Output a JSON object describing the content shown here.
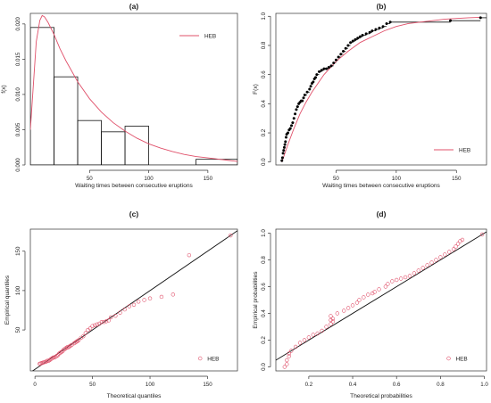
{
  "colors": {
    "series": "#e0506a",
    "axis": "#333333",
    "points": "#000000"
  },
  "chart_data": [
    {
      "id": "a",
      "type": "bar",
      "title": "(a)",
      "xlabel": "Waiting times between consecutive eruptions",
      "ylabel": "f(x)",
      "xlim": [
        0,
        175
      ],
      "ylim": [
        0,
        0.0215
      ],
      "xticks": [
        "50",
        "100",
        "150"
      ],
      "xtick_values": [
        50,
        100,
        150
      ],
      "yticks": [
        "0.000",
        "0.005",
        "0.010",
        "0.015",
        "0.020"
      ],
      "ytick_values": [
        0,
        0.005,
        0.01,
        0.015,
        0.02
      ],
      "bins": [
        {
          "x0": 0,
          "x1": 20,
          "value": 0.0195
        },
        {
          "x0": 20,
          "x1": 40,
          "value": 0.0125
        },
        {
          "x0": 40,
          "x1": 60,
          "value": 0.0063
        },
        {
          "x0": 60,
          "x1": 80,
          "value": 0.0047
        },
        {
          "x0": 80,
          "x1": 100,
          "value": 0.0055
        },
        {
          "x0": 100,
          "x1": 120,
          "value": 0
        },
        {
          "x0": 120,
          "x1": 140,
          "value": 0
        },
        {
          "x0": 140,
          "x1": 175,
          "value": 0.0008
        }
      ],
      "curve": {
        "name": "HEB",
        "x": [
          0,
          5,
          8,
          10,
          12,
          15,
          20,
          25,
          30,
          40,
          50,
          60,
          70,
          80,
          90,
          100,
          110,
          120,
          130,
          140,
          150,
          160,
          170,
          175
        ],
        "y": [
          0.005,
          0.0175,
          0.0205,
          0.0212,
          0.021,
          0.0202,
          0.0185,
          0.0165,
          0.0148,
          0.0118,
          0.0094,
          0.0075,
          0.006,
          0.0048,
          0.0038,
          0.003,
          0.0024,
          0.0019,
          0.0015,
          0.0012,
          0.001,
          0.0008,
          0.0006,
          0.0005
        ]
      },
      "legend": {
        "position": "top-right",
        "entries": [
          "HEB"
        ]
      }
    },
    {
      "id": "b",
      "type": "line",
      "title": "(b)",
      "xlabel": "Waiting times between consecutive eruptions",
      "ylabel": "F(x)",
      "xlim": [
        0,
        175
      ],
      "ylim": [
        -0.02,
        1.02
      ],
      "xticks": [
        "50",
        "100",
        "150"
      ],
      "xtick_values": [
        50,
        100,
        150
      ],
      "yticks": [
        "0.0",
        "0.2",
        "0.4",
        "0.6",
        "0.8",
        "1.0"
      ],
      "ytick_values": [
        0,
        0.2,
        0.4,
        0.6,
        0.8,
        1.0
      ],
      "empirical": {
        "x": [
          5,
          5.5,
          6,
          6.5,
          7,
          7.5,
          8,
          8.5,
          9,
          10,
          11,
          12,
          13,
          14,
          15,
          16,
          17,
          18,
          19,
          20,
          21,
          22,
          23,
          24,
          26,
          28,
          29,
          30,
          31,
          32,
          33,
          34,
          36,
          38,
          40,
          42,
          44,
          46,
          48,
          50,
          52,
          54,
          56,
          58,
          60,
          62,
          64,
          66,
          68,
          70,
          72,
          75,
          78,
          80,
          83,
          86,
          89,
          92,
          95,
          145,
          170
        ],
        "y": [
          0.01,
          0.03,
          0.06,
          0.08,
          0.1,
          0.12,
          0.14,
          0.17,
          0.19,
          0.2,
          0.22,
          0.23,
          0.25,
          0.27,
          0.3,
          0.33,
          0.36,
          0.38,
          0.4,
          0.41,
          0.42,
          0.42,
          0.44,
          0.46,
          0.48,
          0.5,
          0.52,
          0.54,
          0.55,
          0.57,
          0.58,
          0.6,
          0.62,
          0.63,
          0.64,
          0.64,
          0.65,
          0.66,
          0.68,
          0.7,
          0.72,
          0.74,
          0.76,
          0.78,
          0.8,
          0.82,
          0.83,
          0.84,
          0.85,
          0.86,
          0.87,
          0.88,
          0.89,
          0.9,
          0.91,
          0.92,
          0.93,
          0.95,
          0.96,
          0.97,
          0.99
        ]
      },
      "curve": {
        "name": "HEB",
        "x": [
          5,
          10,
          15,
          20,
          25,
          30,
          40,
          50,
          60,
          70,
          80,
          90,
          100,
          110,
          120,
          130,
          140,
          150,
          160,
          170
        ],
        "y": [
          0.0,
          0.12,
          0.23,
          0.33,
          0.41,
          0.48,
          0.6,
          0.69,
          0.76,
          0.82,
          0.86,
          0.9,
          0.93,
          0.95,
          0.96,
          0.97,
          0.98,
          0.985,
          0.99,
          0.993
        ]
      },
      "legend": {
        "position": "bottom-right",
        "entries": [
          "HEB"
        ]
      }
    },
    {
      "id": "c",
      "type": "scatter",
      "title": "(c)",
      "xlabel": "Theoretical quantiles",
      "ylabel": "Empirical quantiles",
      "xlim": [
        -4,
        176
      ],
      "ylim": [
        -2,
        178
      ],
      "xticks": [
        "0",
        "50",
        "100",
        "150"
      ],
      "xtick_values": [
        0,
        50,
        100,
        150
      ],
      "yticks": [
        "50",
        "100",
        "150"
      ],
      "ytick_values": [
        50,
        100,
        150
      ],
      "reference_line": [
        [
          -4,
          -4
        ],
        [
          176,
          176
        ]
      ],
      "points": {
        "name": "HEB",
        "x": [
          4,
          5,
          6,
          7,
          8,
          9,
          10,
          11,
          12,
          13,
          14,
          15,
          16,
          17,
          18,
          19,
          20,
          21,
          22,
          23,
          24,
          25,
          26,
          27,
          28,
          29,
          30,
          31,
          32,
          34,
          35,
          36,
          37,
          38,
          40,
          42,
          44,
          46,
          48,
          50,
          52,
          54,
          56,
          58,
          60,
          62,
          64,
          66,
          70,
          74,
          78,
          82,
          86,
          90,
          95,
          100,
          110,
          120,
          134,
          170
        ],
        "y": [
          7,
          7.5,
          8,
          8.5,
          9,
          9.5,
          10,
          11,
          11,
          12,
          13,
          14,
          15,
          15,
          16,
          17,
          18,
          20,
          21,
          22,
          23,
          25,
          26,
          27,
          28,
          28,
          29,
          30,
          31,
          33,
          34,
          35,
          36,
          37,
          40,
          42,
          46,
          50,
          52,
          55,
          56,
          57,
          58,
          60,
          60,
          61,
          62,
          66,
          68,
          72,
          76,
          80,
          82,
          86,
          88,
          90,
          92,
          95,
          145,
          170
        ]
      },
      "legend": {
        "position": "bottom-right",
        "entries": [
          "HEB"
        ]
      }
    },
    {
      "id": "d",
      "type": "scatter",
      "title": "(d)",
      "xlabel": "Theoretical probabilities",
      "ylabel": "Empirical probabilities",
      "xlim": [
        0.05,
        1.01
      ],
      "ylim": [
        -0.03,
        1.03
      ],
      "xticks": [
        "0.2",
        "0.4",
        "0.6",
        "0.8",
        "1.0"
      ],
      "xtick_values": [
        0.2,
        0.4,
        0.6,
        0.8,
        1.0
      ],
      "yticks": [
        "0.0",
        "0.2",
        "0.4",
        "0.6",
        "0.8",
        "1.0"
      ],
      "ytick_values": [
        0,
        0.2,
        0.4,
        0.6,
        0.8,
        1.0
      ],
      "reference_line": [
        [
          0.05,
          0.05
        ],
        [
          1.01,
          1.01
        ]
      ],
      "points": {
        "name": "HEB",
        "x": [
          0.09,
          0.1,
          0.1,
          0.11,
          0.11,
          0.12,
          0.14,
          0.16,
          0.18,
          0.2,
          0.22,
          0.24,
          0.26,
          0.28,
          0.3,
          0.3,
          0.3,
          0.31,
          0.31,
          0.33,
          0.36,
          0.38,
          0.4,
          0.42,
          0.43,
          0.45,
          0.47,
          0.49,
          0.5,
          0.52,
          0.55,
          0.56,
          0.58,
          0.6,
          0.62,
          0.64,
          0.66,
          0.68,
          0.7,
          0.72,
          0.74,
          0.76,
          0.78,
          0.8,
          0.82,
          0.84,
          0.86,
          0.87,
          0.88,
          0.89,
          0.9,
          0.99
        ],
        "y": [
          0.0,
          0.02,
          0.05,
          0.08,
          0.1,
          0.12,
          0.15,
          0.18,
          0.2,
          0.22,
          0.24,
          0.25,
          0.27,
          0.3,
          0.32,
          0.35,
          0.38,
          0.36,
          0.34,
          0.4,
          0.42,
          0.44,
          0.46,
          0.48,
          0.5,
          0.52,
          0.54,
          0.55,
          0.56,
          0.58,
          0.6,
          0.62,
          0.64,
          0.65,
          0.66,
          0.67,
          0.68,
          0.7,
          0.72,
          0.74,
          0.76,
          0.78,
          0.8,
          0.82,
          0.84,
          0.86,
          0.88,
          0.9,
          0.92,
          0.94,
          0.95,
          0.99
        ]
      },
      "legend": {
        "position": "bottom-right",
        "entries": [
          "HEB"
        ]
      }
    }
  ]
}
